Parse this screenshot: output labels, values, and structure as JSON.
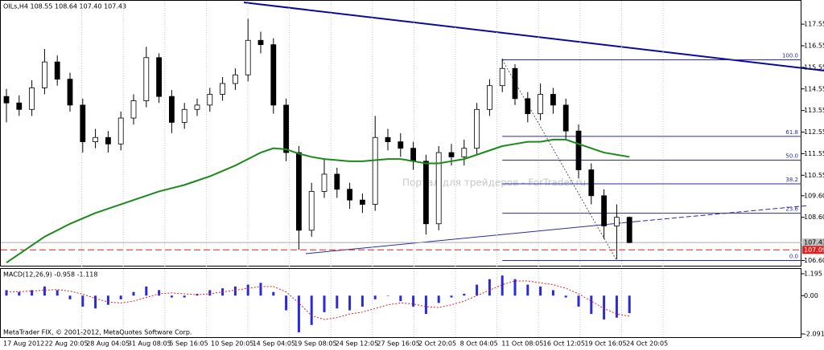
{
  "chart_data": {
    "type": "candlestick",
    "title": "OILs,H4  108.55 108.64 107.40 107.43",
    "footer": "MetaTrader FIX, © 2001-2012, MetaQuotes Software Corp.",
    "watermark": "Портал для трейдеров - ForTrader.ru",
    "time_labels": [
      "17 Aug 2012",
      "22 Aug 20:05",
      "28 Aug 04:05",
      "31 Aug 08:05",
      "5 Sep 16:05",
      "10 Sep 20:05",
      "14 Sep 04:05",
      "19 Sep 08:05",
      "24 Sep 12:05",
      "27 Sep 16:05",
      "2 Oct 20:05",
      "8 Oct 04:05",
      "11 Oct 08:05",
      "16 Oct 12:05",
      "19 Oct 16:05",
      "24 Oct 20:05"
    ],
    "open": [
      114.2,
      113.9,
      113.6,
      114.6,
      115.8,
      115.0,
      113.8,
      112.1,
      112.3,
      112.0,
      113.2,
      114.0,
      116.0,
      114.2,
      113.0,
      113.6,
      113.8,
      114.3,
      114.8,
      115.2,
      116.8,
      116.6,
      113.8,
      111.6,
      108.0,
      109.8,
      110.6,
      109.9,
      109.4,
      109.2,
      112.3,
      112.1,
      111.8,
      111.2,
      108.3,
      111.6,
      111.4,
      111.8,
      113.6,
      114.7,
      115.5,
      114.1,
      113.4,
      114.3,
      113.8,
      112.6,
      110.8,
      109.6,
      108.2,
      108.6
    ],
    "high": [
      114.55,
      114.25,
      114.95,
      116.4,
      116.1,
      115.3,
      114.1,
      112.7,
      112.6,
      113.5,
      114.3,
      116.5,
      116.2,
      114.5,
      113.9,
      114.1,
      114.6,
      115.1,
      115.5,
      117.8,
      117.2,
      116.9,
      114.1,
      111.9,
      110.2,
      111.3,
      110.9,
      110.2,
      109.7,
      113.3,
      112.7,
      112.5,
      112.1,
      111.5,
      111.9,
      112.0,
      112.2,
      113.9,
      115.0,
      115.95,
      115.7,
      114.4,
      114.8,
      114.6,
      114.1,
      112.9,
      111.1,
      109.9,
      109.2,
      108.64
    ],
    "low": [
      113.0,
      113.3,
      113.3,
      114.3,
      114.7,
      113.5,
      111.6,
      111.8,
      111.6,
      111.7,
      112.9,
      113.7,
      113.9,
      112.5,
      112.7,
      113.3,
      113.5,
      114.0,
      114.5,
      114.9,
      116.2,
      113.4,
      111.2,
      107.1,
      107.7,
      109.5,
      109.5,
      109.0,
      108.8,
      108.9,
      111.7,
      111.4,
      110.8,
      107.8,
      108.0,
      111.0,
      111.0,
      111.5,
      113.3,
      114.4,
      113.8,
      113.0,
      113.1,
      113.4,
      112.2,
      110.4,
      109.2,
      107.6,
      106.65,
      107.4
    ],
    "close": [
      113.9,
      113.6,
      114.6,
      115.8,
      115.0,
      113.8,
      112.1,
      112.3,
      112.0,
      113.2,
      114.0,
      116.0,
      114.2,
      113.0,
      113.6,
      113.8,
      114.3,
      114.8,
      115.2,
      116.8,
      116.6,
      113.8,
      111.6,
      108.0,
      109.8,
      110.6,
      109.9,
      109.4,
      109.2,
      112.3,
      112.1,
      111.8,
      111.2,
      108.3,
      111.6,
      111.4,
      111.8,
      113.6,
      114.7,
      115.5,
      114.1,
      113.4,
      114.3,
      113.8,
      112.6,
      110.8,
      109.6,
      108.2,
      108.6,
      107.43
    ],
    "ma": {
      "color": "#1a8a1a",
      "values": [
        106.5,
        106.9,
        107.3,
        107.7,
        108.0,
        108.3,
        108.55,
        108.8,
        109.0,
        109.2,
        109.4,
        109.6,
        109.8,
        109.95,
        110.1,
        110.3,
        110.5,
        110.75,
        111.0,
        111.3,
        111.6,
        111.8,
        111.75,
        111.55,
        111.4,
        111.3,
        111.25,
        111.2,
        111.2,
        111.25,
        111.3,
        111.3,
        111.2,
        111.1,
        111.1,
        111.2,
        111.3,
        111.5,
        111.7,
        111.9,
        112.0,
        112.1,
        112.1,
        112.2,
        112.2,
        112.0,
        111.8,
        111.6,
        111.5,
        111.4
      ]
    },
    "ylim": [
      106.32,
      118.67
    ],
    "yticks": [
      {
        "value": 117.55,
        "label": "117.55"
      },
      {
        "value": 116.55,
        "label": "116.55"
      },
      {
        "value": 115.55,
        "label": "115.55"
      },
      {
        "value": 114.55,
        "label": "114.55"
      },
      {
        "value": 113.55,
        "label": "113.55"
      },
      {
        "value": 112.55,
        "label": "112.55"
      },
      {
        "value": 111.55,
        "label": "111.55"
      },
      {
        "value": 110.55,
        "label": "110.55"
      },
      {
        "value": 109.6,
        "label": "109.60"
      },
      {
        "value": 108.6,
        "label": "108.60"
      },
      {
        "value": 106.6,
        "label": "106.60"
      }
    ],
    "current_price": 107.43,
    "alert_price": 107.09,
    "fibo": [
      {
        "label": "100.0",
        "price": 115.9
      },
      {
        "label": "61.8",
        "price": 112.35
      },
      {
        "label": "50.0",
        "price": 111.25
      },
      {
        "label": "38.2",
        "price": 110.15
      },
      {
        "label": "23.6",
        "price": 108.79
      },
      {
        "label": "0.0",
        "price": 106.6
      }
    ],
    "macd": {
      "title": "MACD(12,26,9) -0.958 -1.118",
      "ylim": [
        -2.266,
        1.458
      ],
      "yticks": [
        1.195,
        {
          "value": 0,
          "label": "0.00"
        },
        -2.091
      ],
      "hist_color": "#2a2ad8",
      "signal_color": "#e02020",
      "hist": [
        0.3,
        0.2,
        0.3,
        0.5,
        0.3,
        -0.2,
        -0.6,
        -0.7,
        -0.5,
        -0.2,
        0.2,
        0.5,
        0.3,
        -0.1,
        -0.1,
        0.1,
        0.3,
        0.4,
        0.5,
        0.6,
        0.7,
        0.2,
        -0.8,
        -2.0,
        -1.6,
        -0.9,
        -0.7,
        -0.8,
        -0.6,
        -0.2,
        0.0,
        -0.3,
        -0.6,
        -1.0,
        -0.4,
        -0.1,
        0.1,
        0.6,
        0.9,
        1.1,
        0.9,
        0.6,
        0.5,
        0.3,
        -0.1,
        -0.6,
        -1.0,
        -1.3,
        -1.2,
        -0.958
      ],
      "signal": [
        0.2,
        0.22,
        0.25,
        0.3,
        0.33,
        0.25,
        0.08,
        -0.15,
        -0.35,
        -0.4,
        -0.3,
        -0.1,
        0.1,
        0.15,
        0.1,
        0.05,
        0.1,
        0.2,
        0.3,
        0.4,
        0.5,
        0.5,
        0.2,
        -0.4,
        -1.1,
        -1.3,
        -1.2,
        -1.0,
        -0.9,
        -0.7,
        -0.5,
        -0.4,
        -0.45,
        -0.6,
        -0.65,
        -0.5,
        -0.3,
        0.0,
        0.3,
        0.6,
        0.8,
        0.8,
        0.7,
        0.6,
        0.4,
        0.1,
        -0.3,
        -0.7,
        -1.0,
        -1.118
      ]
    }
  }
}
